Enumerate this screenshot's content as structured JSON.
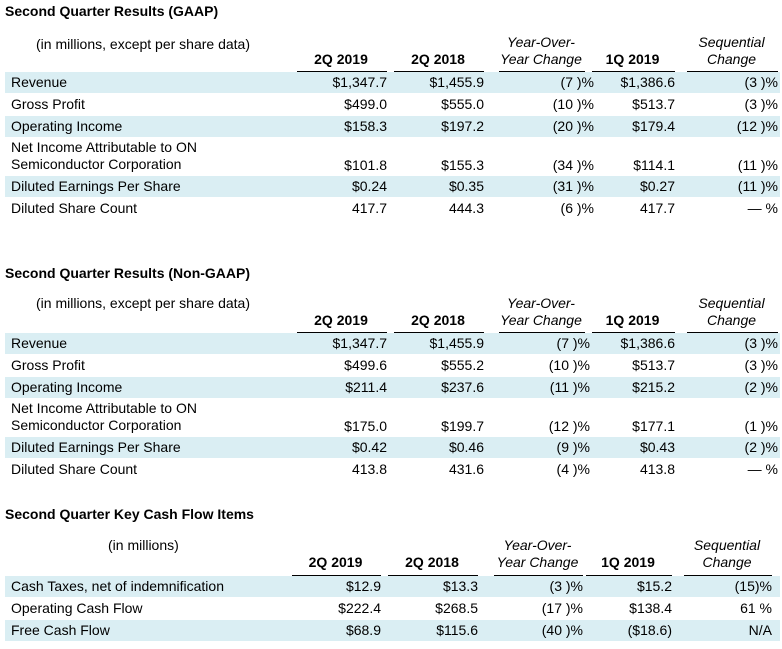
{
  "sections": [
    {
      "title": "Second Quarter Results (GAAP)",
      "units_note": "(in millions, except per share data)",
      "headers": [
        "2Q 2019",
        "2Q 2018",
        "Year-Over-\nYear Change",
        "1Q 2019",
        "Sequential\nChange"
      ],
      "rows": [
        {
          "label": "Revenue",
          "c1": "$1,347.7",
          "c2": "$1,455.9",
          "yoy": "(7 )%",
          "c4": "$1,386.6",
          "seq": "(3 )%"
        },
        {
          "label": "Gross Profit",
          "c1": "$499.0",
          "c2": "$555.0",
          "yoy": "(10 )%",
          "c4": "$513.7",
          "seq": "(3 )%"
        },
        {
          "label": "Operating Income",
          "c1": "$158.3",
          "c2": "$197.2",
          "yoy": "(20 )%",
          "c4": "$179.4",
          "seq": "(12 )%"
        },
        {
          "label": "Net Income Attributable to ON\nSemiconductor Corporation",
          "c1": "$101.8",
          "c2": "$155.3",
          "yoy": "(34 )%",
          "c4": "$114.1",
          "seq": "(11 )%"
        },
        {
          "label": "Diluted Earnings Per Share",
          "c1": "$0.24",
          "c2": "$0.35",
          "yoy": "(31 )%",
          "c4": "$0.27",
          "seq": "(11 )%"
        },
        {
          "label": "Diluted Share Count",
          "c1": "417.7",
          "c2": "444.3",
          "yoy": "(6 )%",
          "c4": "417.7",
          "seq": "— %"
        }
      ]
    },
    {
      "title": "Second Quarter Results (Non-GAAP)",
      "units_note": "(in millions, except per share data)",
      "headers": [
        "2Q 2019",
        "2Q 2018",
        "Year-Over-\nYear Change",
        "1Q 2019",
        "Sequential\nChange"
      ],
      "rows": [
        {
          "label": "Revenue",
          "c1": "$1,347.7",
          "c2": "$1,455.9",
          "yoy": "(7 )%",
          "c4": "$1,386.6",
          "seq": "(3 )%"
        },
        {
          "label": "Gross Profit",
          "c1": "$499.6",
          "c2": "$555.2",
          "yoy": "(10 )%",
          "c4": "$513.7",
          "seq": "(3 )%"
        },
        {
          "label": "Operating Income",
          "c1": "$211.4",
          "c2": "$237.6",
          "yoy": "(11 )%",
          "c4": "$215.2",
          "seq": "(2 )%"
        },
        {
          "label": "Net Income Attributable to ON\nSemiconductor Corporation",
          "c1": "$175.0",
          "c2": "$199.7",
          "yoy": "(12 )%",
          "c4": "$177.1",
          "seq": "(1 )%"
        },
        {
          "label": "Diluted Earnings Per Share",
          "c1": "$0.42",
          "c2": "$0.46",
          "yoy": "(9 )%",
          "c4": "$0.43",
          "seq": "(2 )%"
        },
        {
          "label": "Diluted Share Count",
          "c1": "413.8",
          "c2": "431.6",
          "yoy": "(4 )%",
          "c4": "413.8",
          "seq": "— %"
        }
      ]
    },
    {
      "title": "Second Quarter Key Cash Flow Items",
      "units_note": "(in millions)",
      "headers": [
        "2Q 2019",
        "2Q 2018",
        "Year-Over-\nYear Change",
        "1Q 2019",
        "Sequential\nChange"
      ],
      "rows": [
        {
          "label": "Cash Taxes, net of indemnification",
          "c1": "$12.9",
          "c2": "$13.3",
          "yoy": "(3 )%",
          "c4": "$15.2",
          "seq": "(15)%"
        },
        {
          "label": "Operating Cash Flow",
          "c1": "$222.4",
          "c2": "$268.5",
          "yoy": "(17 )%",
          "c4": "$138.4",
          "seq": "61 %"
        },
        {
          "label": "Free Cash Flow",
          "c1": "$68.9",
          "c2": "$115.6",
          "yoy": "(40 )%",
          "c4": "($18.6)",
          "seq": "N/A"
        }
      ]
    }
  ],
  "colors": {
    "row_shade": "#daeef3",
    "text": "#000000"
  }
}
